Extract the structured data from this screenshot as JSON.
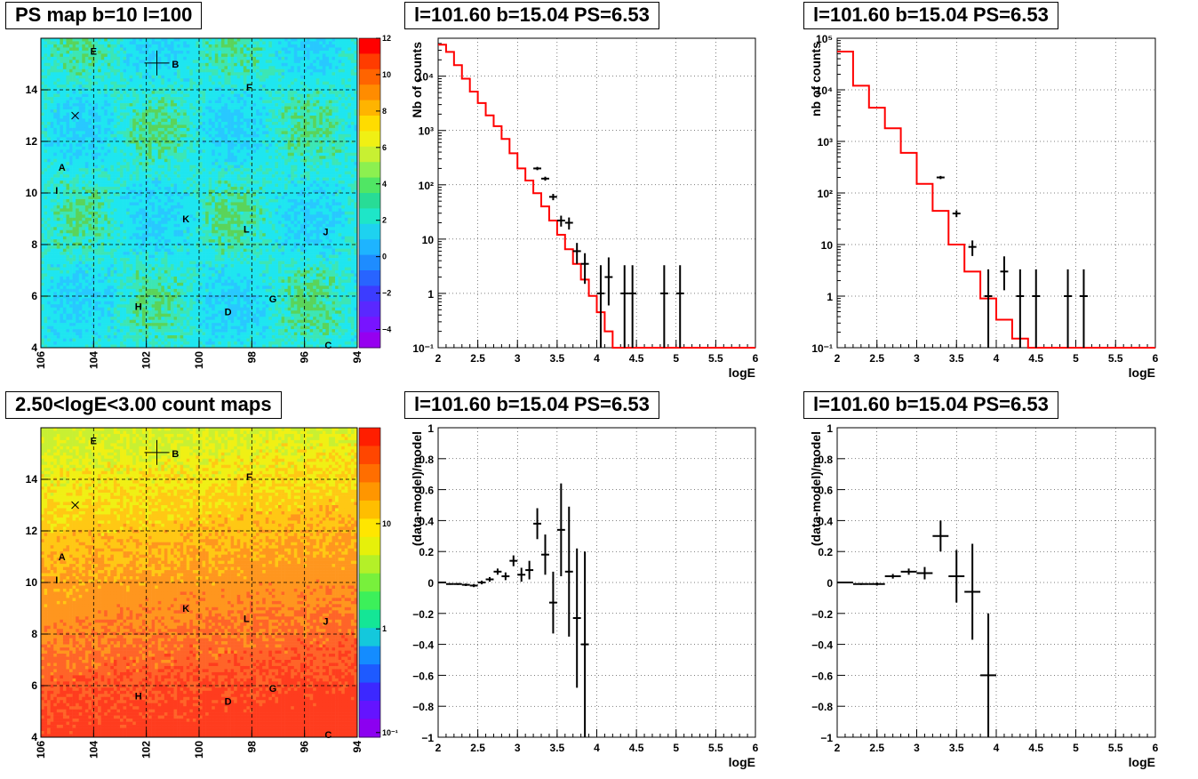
{
  "panels": {
    "ps_map": {
      "title": "PS map b=10 l=100"
    },
    "count_map": {
      "title": "2.50<logE<3.00 count maps"
    },
    "spec1": {
      "title": "l=101.60 b=15.04 PS=6.53"
    },
    "spec2": {
      "title": "l=101.60 b=15.04 PS=6.53"
    },
    "res1": {
      "title": "l=101.60 b=15.04 PS=6.53"
    },
    "res2": {
      "title": "l=101.60 b=15.04 PS=6.53"
    }
  },
  "chart_data": [
    {
      "type": "heatmap",
      "panel": "ps_map",
      "title": "PS map b=10 l=100",
      "x_ticks": [
        "106",
        "104",
        "102",
        "100",
        "98",
        "96",
        "94"
      ],
      "y_ticks": [
        "4",
        "6",
        "8",
        "10",
        "12",
        "14"
      ],
      "xlim": [
        106,
        94
      ],
      "ylim": [
        4,
        16
      ],
      "color_scale": "linear",
      "z_ticks": [
        "−4",
        "−2",
        "0",
        "2",
        "4",
        "6",
        "8",
        "10",
        "12"
      ],
      "zlim": [
        -5,
        12
      ],
      "grid": true,
      "sources": [
        {
          "label": "E",
          "l": 104.0,
          "b": 15.5
        },
        {
          "label": "B",
          "l": 100.9,
          "b": 15.0
        },
        {
          "label": "F",
          "l": 98.1,
          "b": 14.1
        },
        {
          "label": "A",
          "l": 105.2,
          "b": 11.0
        },
        {
          "label": "I",
          "l": 105.4,
          "b": 10.1
        },
        {
          "label": "K",
          "l": 100.5,
          "b": 9.0
        },
        {
          "label": "L",
          "l": 98.2,
          "b": 8.6
        },
        {
          "label": "J",
          "l": 95.2,
          "b": 8.5
        },
        {
          "label": "H",
          "l": 102.3,
          "b": 5.6
        },
        {
          "label": "D",
          "l": 98.9,
          "b": 5.4
        },
        {
          "label": "G",
          "l": 97.2,
          "b": 5.9
        },
        {
          "label": "C",
          "l": 95.1,
          "b": 4.1
        }
      ],
      "cross_marker": {
        "l": 101.6,
        "b": 15.04
      },
      "x_marker": {
        "l": 104.7,
        "b": 13.0
      }
    },
    {
      "type": "heatmap",
      "panel": "count_map",
      "title": "2.50<logE<3.00 count maps",
      "x_ticks": [
        "106",
        "104",
        "102",
        "100",
        "98",
        "96",
        "94"
      ],
      "y_ticks": [
        "4",
        "6",
        "8",
        "10",
        "12",
        "14"
      ],
      "xlim": [
        106,
        94
      ],
      "ylim": [
        4,
        16
      ],
      "color_scale": "log",
      "z_ticks": [
        "10",
        "1",
        "10⁻¹"
      ],
      "grid": true,
      "sources": [
        {
          "label": "E",
          "l": 104.0,
          "b": 15.5
        },
        {
          "label": "B",
          "l": 100.9,
          "b": 15.0
        },
        {
          "label": "F",
          "l": 98.1,
          "b": 14.1
        },
        {
          "label": "A",
          "l": 105.2,
          "b": 11.0
        },
        {
          "label": "I",
          "l": 105.4,
          "b": 10.1
        },
        {
          "label": "K",
          "l": 100.5,
          "b": 9.0
        },
        {
          "label": "L",
          "l": 98.2,
          "b": 8.6
        },
        {
          "label": "J",
          "l": 95.2,
          "b": 8.5
        },
        {
          "label": "H",
          "l": 102.3,
          "b": 5.6
        },
        {
          "label": "D",
          "l": 98.9,
          "b": 5.4
        },
        {
          "label": "G",
          "l": 97.2,
          "b": 5.9
        },
        {
          "label": "C",
          "l": 95.1,
          "b": 4.1
        }
      ],
      "cross_marker": {
        "l": 101.6,
        "b": 15.04
      },
      "x_marker": {
        "l": 104.7,
        "b": 13.0
      }
    },
    {
      "type": "line",
      "panel": "spec1",
      "title": "l=101.60 b=15.04 PS=6.53",
      "xlabel": "logE",
      "ylabel": "Nb of counts",
      "xlim": [
        2,
        6
      ],
      "ylim": [
        0.1,
        50000
      ],
      "yscale": "log",
      "x_ticks": [
        "2",
        "2.5",
        "3",
        "3.5",
        "4",
        "4.5",
        "5",
        "5.5",
        "6"
      ],
      "y_ticks": [
        "10⁻¹",
        "1",
        "10",
        "10²",
        "10³",
        "10⁴"
      ],
      "grid": true,
      "series": [
        {
          "color": "#ff0000",
          "bin_edges": [
            2.0,
            2.1,
            2.2,
            2.3,
            2.4,
            2.5,
            2.6,
            2.7,
            2.8,
            2.9,
            3.0,
            3.1,
            3.2,
            3.3,
            3.4,
            3.5,
            3.6,
            3.7,
            3.8,
            3.9,
            4.0,
            4.1,
            4.2,
            6.0
          ],
          "values": [
            38000,
            28000,
            16000,
            9000,
            5200,
            3200,
            1900,
            1200,
            700,
            380,
            200,
            120,
            70,
            40,
            22,
            12,
            6.5,
            3.5,
            1.8,
            0.9,
            0.45,
            0.2,
            0.1
          ]
        },
        {
          "type": "errorbars",
          "color": "#000000",
          "x": [
            3.25,
            3.35,
            3.45,
            3.55,
            3.65,
            3.75,
            3.85,
            4.05,
            4.15,
            4.35,
            4.45,
            4.85,
            5.05
          ],
          "y": [
            200,
            130,
            60,
            22,
            20,
            6,
            3.5,
            1,
            2,
            1,
            1,
            1,
            1
          ],
          "err_low": [
            14,
            11,
            8,
            5,
            5,
            2.5,
            2,
            0.9,
            1.4,
            0.9,
            0.9,
            0.9,
            0.9
          ],
          "err_high": [
            14,
            11,
            8,
            5,
            5,
            2.5,
            2,
            2.3,
            2.6,
            2.3,
            2.3,
            2.3,
            2.3
          ]
        }
      ]
    },
    {
      "type": "line",
      "panel": "spec2",
      "title": "l=101.60 b=15.04 PS=6.53",
      "xlabel": "logE",
      "ylabel": "nb of counts",
      "xlim": [
        2,
        6
      ],
      "ylim": [
        0.1,
        100000
      ],
      "yscale": "log",
      "x_ticks": [
        "2",
        "2.5",
        "3",
        "3.5",
        "4",
        "4.5",
        "5",
        "5.5",
        "6"
      ],
      "y_ticks": [
        "10⁻¹",
        "1",
        "10",
        "10²",
        "10³",
        "10⁴",
        "10⁵"
      ],
      "grid": true,
      "series": [
        {
          "color": "#ff0000",
          "bin_edges": [
            2.0,
            2.2,
            2.4,
            2.6,
            2.8,
            3.0,
            3.2,
            3.4,
            3.6,
            3.8,
            4.0,
            4.2,
            4.4,
            4.6,
            6.0
          ],
          "values": [
            55000,
            12000,
            4500,
            1800,
            600,
            150,
            45,
            10,
            3,
            0.9,
            0.35,
            0.15,
            0.1,
            0.1
          ]
        },
        {
          "type": "errorbars",
          "color": "#000000",
          "x": [
            3.3,
            3.5,
            3.7,
            3.9,
            4.1,
            4.3,
            4.5,
            4.9,
            5.1
          ],
          "y": [
            200,
            40,
            9,
            1,
            3,
            1,
            1,
            1,
            1
          ],
          "err_low": [
            14,
            6,
            3,
            0.9,
            1.7,
            0.9,
            0.9,
            0.9,
            0.9
          ],
          "err_high": [
            14,
            6,
            3,
            2.3,
            2.9,
            2.3,
            2.3,
            2.3,
            2.3
          ]
        }
      ]
    },
    {
      "type": "scatter",
      "panel": "res1",
      "title": "l=101.60 b=15.04 PS=6.53",
      "xlabel": "logE",
      "ylabel": "(data-model)/model",
      "xlim": [
        2,
        6
      ],
      "ylim": [
        -1,
        1
      ],
      "x_ticks": [
        "2",
        "2.5",
        "3",
        "3.5",
        "4",
        "4.5",
        "5",
        "5.5",
        "6"
      ],
      "y_ticks": [
        "−1",
        "−0.8",
        "−0.6",
        "−0.4",
        "−0.2",
        "0",
        "0.2",
        "0.4",
        "0.6",
        "0.8",
        "1"
      ],
      "grid": true,
      "series": [
        {
          "type": "errorbars",
          "color": "#000000",
          "x_halfwidth": 0.05,
          "x": [
            2.05,
            2.15,
            2.25,
            2.35,
            2.45,
            2.55,
            2.65,
            2.75,
            2.85,
            2.95,
            3.05,
            3.15,
            3.25,
            3.35,
            3.45,
            3.55,
            3.65,
            3.75,
            3.85
          ],
          "y": [
            0.0,
            -0.01,
            -0.01,
            -0.015,
            -0.02,
            0.0,
            0.02,
            0.07,
            0.04,
            0.14,
            0.05,
            0.08,
            0.38,
            0.18,
            -0.13,
            0.34,
            0.07,
            -0.23,
            -0.4
          ],
          "err": [
            0.005,
            0.005,
            0.006,
            0.008,
            0.01,
            0.012,
            0.015,
            0.02,
            0.025,
            0.035,
            0.045,
            0.06,
            0.1,
            0.13,
            0.2,
            0.3,
            0.42,
            0.45,
            0.6
          ]
        }
      ]
    },
    {
      "type": "scatter",
      "panel": "res2",
      "title": "l=101.60 b=15.04 PS=6.53",
      "xlabel": "logE",
      "ylabel": "(data-model)/model",
      "xlim": [
        2,
        6
      ],
      "ylim": [
        -1,
        1
      ],
      "x_ticks": [
        "2",
        "2.5",
        "3",
        "3.5",
        "4",
        "4.5",
        "5",
        "5.5",
        "6"
      ],
      "y_ticks": [
        "−1",
        "−0.8",
        "−0.6",
        "−0.4",
        "−0.2",
        "0",
        "0.2",
        "0.4",
        "0.6",
        "0.8",
        "1"
      ],
      "grid": true,
      "series": [
        {
          "type": "errorbars",
          "color": "#000000",
          "x_halfwidth": 0.1,
          "x": [
            2.1,
            2.3,
            2.5,
            2.7,
            2.9,
            3.1,
            3.3,
            3.5,
            3.7,
            3.9
          ],
          "y": [
            0.0,
            -0.01,
            -0.01,
            0.04,
            0.07,
            0.06,
            0.3,
            0.04,
            -0.06,
            -0.6
          ],
          "err": [
            0.004,
            0.006,
            0.01,
            0.015,
            0.02,
            0.04,
            0.1,
            0.17,
            0.31,
            0.4
          ]
        }
      ]
    }
  ]
}
